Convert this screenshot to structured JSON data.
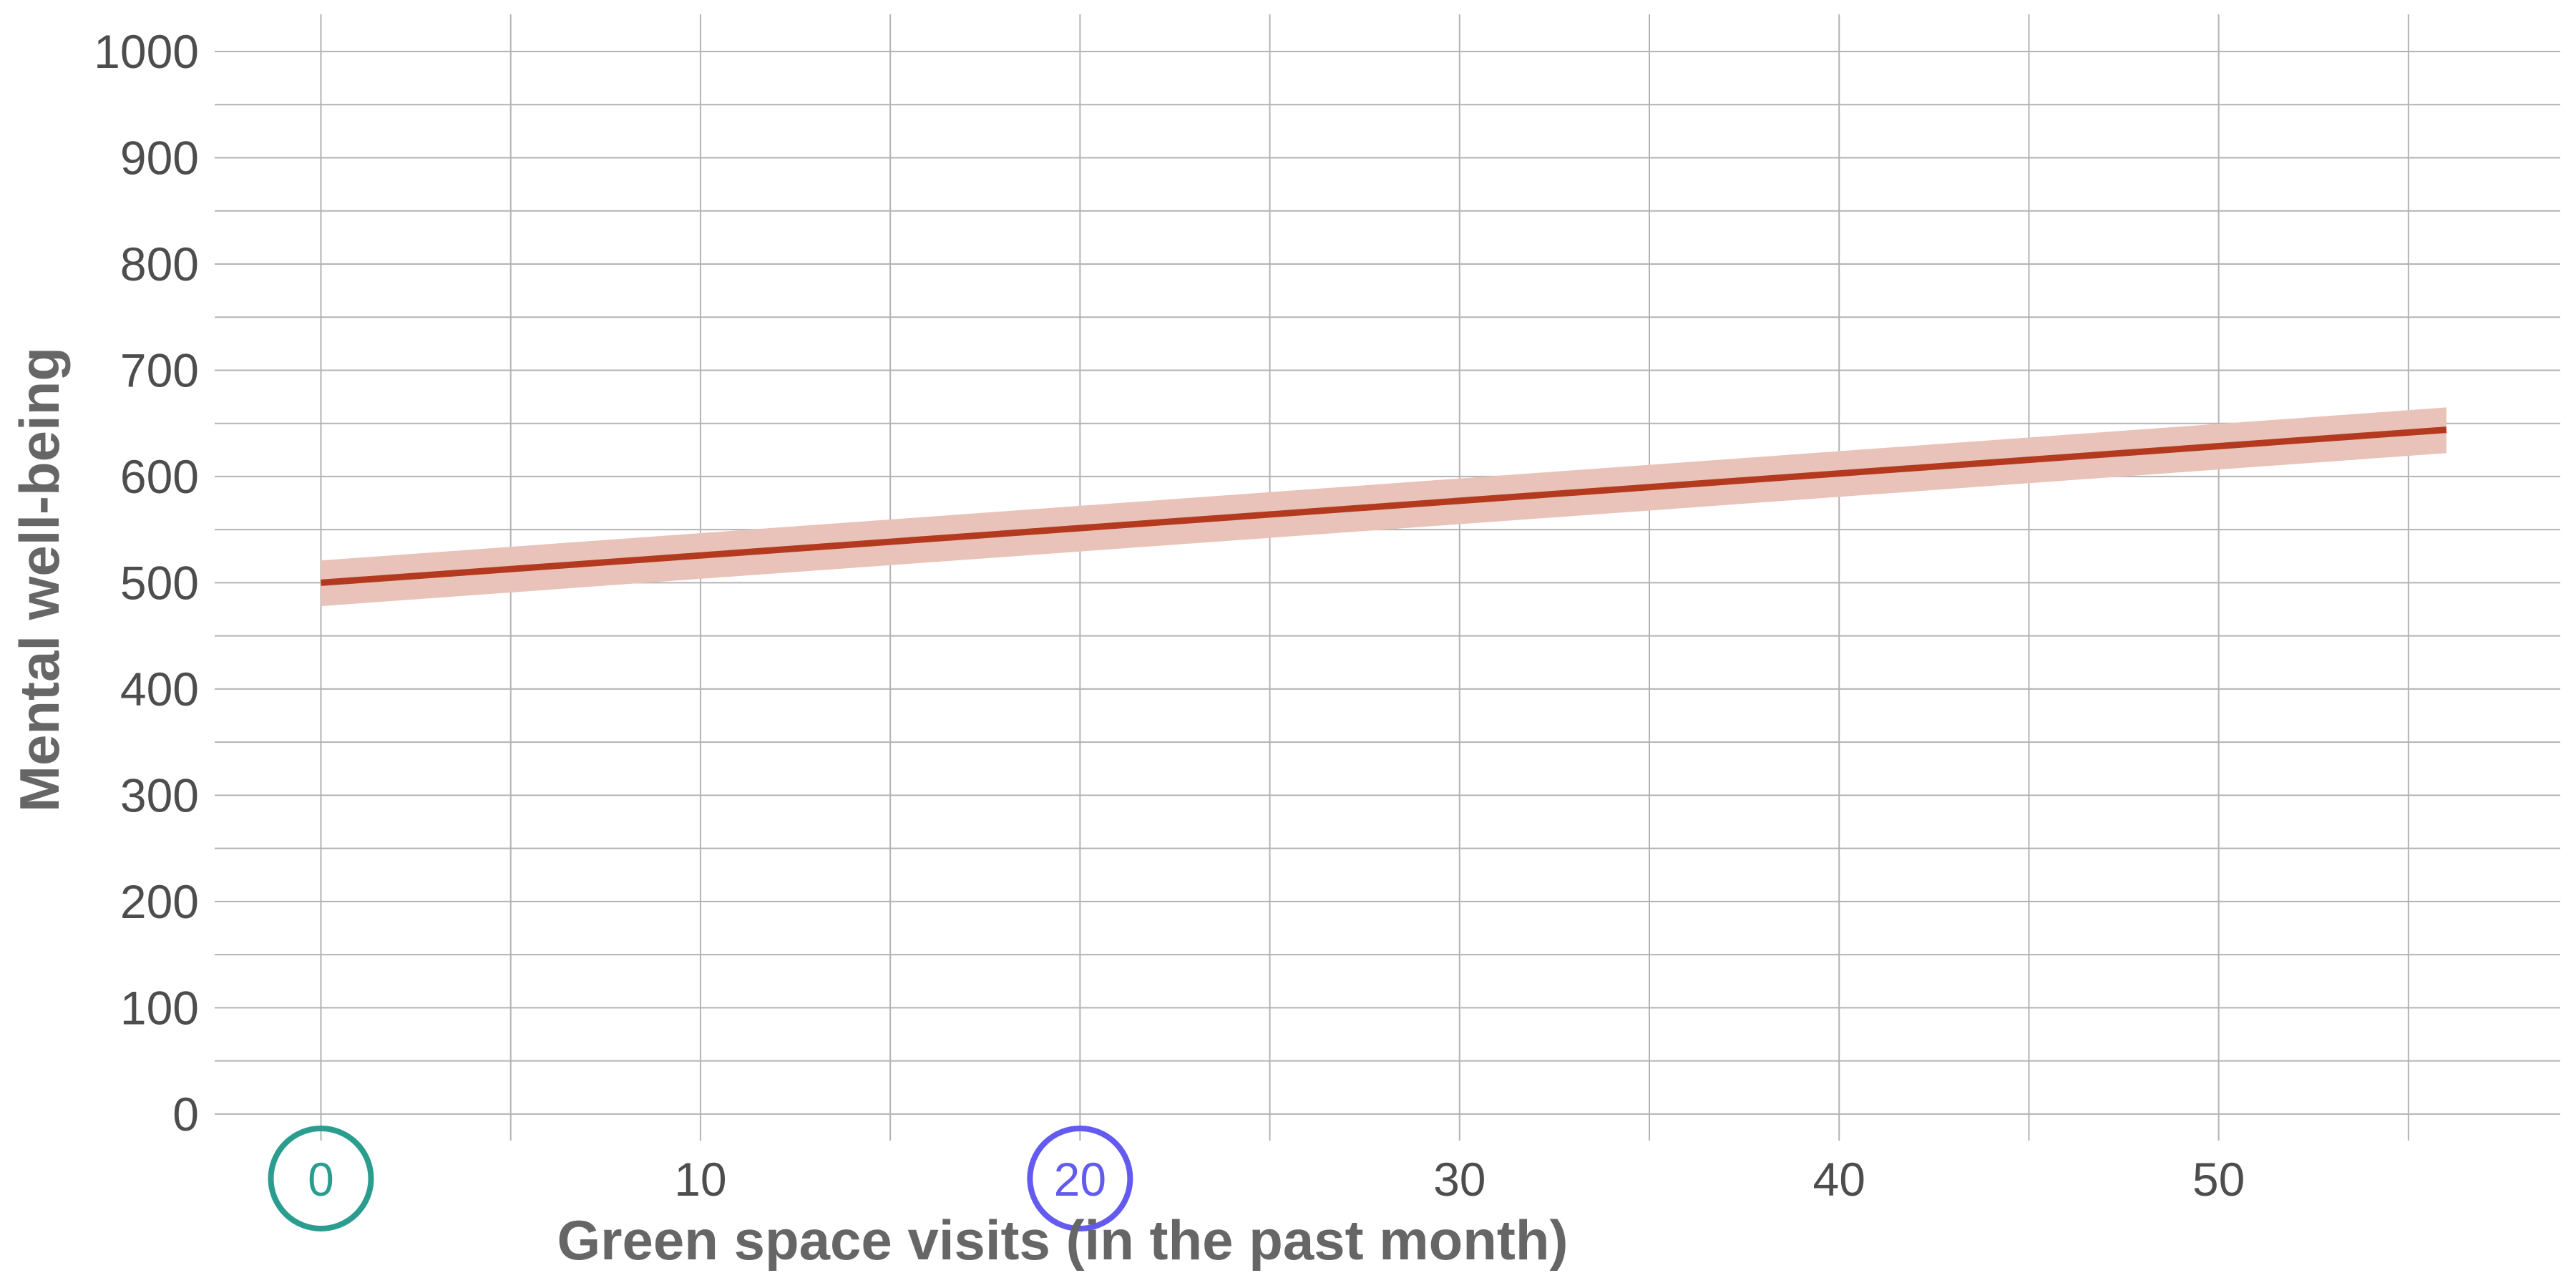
{
  "chart_data": {
    "type": "line",
    "xlabel": "Green space visits (in the past month)",
    "ylabel": "Mental well-being",
    "xlim": [
      -2.8,
      59.0
    ],
    "ylim": [
      -25,
      1035
    ],
    "x_ticks": [
      0,
      10,
      20,
      30,
      40,
      50
    ],
    "y_ticks": [
      0,
      100,
      200,
      300,
      400,
      500,
      600,
      700,
      800,
      900,
      1000
    ],
    "grid": true,
    "series": [
      {
        "x": [
          0,
          56
        ],
        "y": [
          500,
          644
        ],
        "ci_lower": [
          478,
          622
        ],
        "ci_upper": [
          521,
          665
        ],
        "color": "#b33a1f",
        "band_color": "#e9c3b9"
      }
    ],
    "highlighted_x_ticks": [
      {
        "value": 0,
        "color": "#2a9d8f"
      },
      {
        "value": 20,
        "color": "#635bef"
      }
    ],
    "tick_color": "#4d4d4d"
  }
}
